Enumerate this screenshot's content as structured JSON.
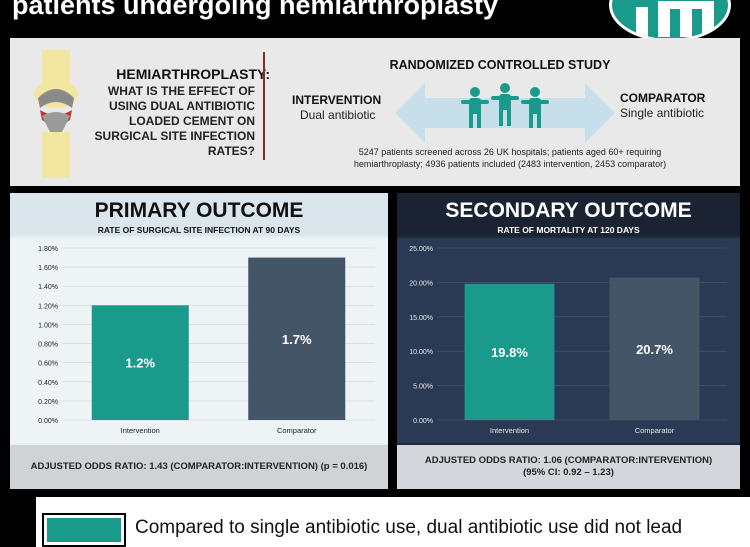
{
  "header": {
    "title": "patients undergoing hemiarthroplasty"
  },
  "question": {
    "title": "HEMIARTHROPLASTY:",
    "lines": [
      "WHAT IS THE EFFECT OF",
      "USING DUAL ANTIBIOTIC",
      "LOADED CEMENT ON",
      "SURGICAL SITE INFECTION",
      "RATES?"
    ]
  },
  "study": {
    "title": "RANDOMIZED CONTROLLED STUDY",
    "intervention_label": "INTERVENTION",
    "intervention_sub": "Dual antibiotic",
    "comparator_label": "COMPARATOR",
    "comparator_sub": "Single antibiotic",
    "description": "5247 patients screened across 26 UK hospitals; patients aged 60+ requiring hemiarthroplasty; 4936 patients included (2483 intervention, 2453 comparator)"
  },
  "primary": {
    "title": "PRIMARY OUTCOME",
    "subtitle": "RATE OF SURGICAL SITE INFECTION AT 90 DAYS",
    "footer": "ADJUSTED ODDS RATIO: 1.43 (COMPARATOR:INTERVENTION) (p = 0.016)"
  },
  "secondary": {
    "title": "SECONDARY OUTCOME",
    "subtitle": "RATE OF MORTALITY AT 120 DAYS",
    "footer_line1": "ADJUSTED ODDS RATIO: 1.06 (COMPARATOR:INTERVENTION)",
    "footer_line2": "(95% CI: 0.92 – 1.23)"
  },
  "conclusion": {
    "text": "Compared to single antibiotic use, dual antibiotic use did not lead"
  },
  "colors": {
    "teal": "#1a9a8a",
    "slate": "#455568",
    "navy": "#1f2a3d"
  },
  "chart_data": [
    {
      "type": "bar",
      "categories": [
        "Intervention",
        "Comparator"
      ],
      "values": [
        1.2,
        1.7
      ],
      "data_labels": [
        "1.2%",
        "1.7%"
      ],
      "yticks": [
        "0.00%",
        "0.20%",
        "0.40%",
        "0.60%",
        "0.80%",
        "1.00%",
        "1.20%",
        "1.40%",
        "1.60%",
        "1.80%"
      ],
      "ylim": [
        0,
        1.8
      ],
      "colors": [
        "#1a9a8a",
        "#455568"
      ]
    },
    {
      "type": "bar",
      "categories": [
        "Intervention",
        "Comparator"
      ],
      "values": [
        19.8,
        20.7
      ],
      "data_labels": [
        "19.8%",
        "20.7%"
      ],
      "yticks": [
        "0.00%",
        "5.00%",
        "10.00%",
        "15.00%",
        "20.00%",
        "25.00%"
      ],
      "ylim": [
        0,
        25
      ],
      "colors": [
        "#1a9a8a",
        "#455568"
      ]
    }
  ]
}
